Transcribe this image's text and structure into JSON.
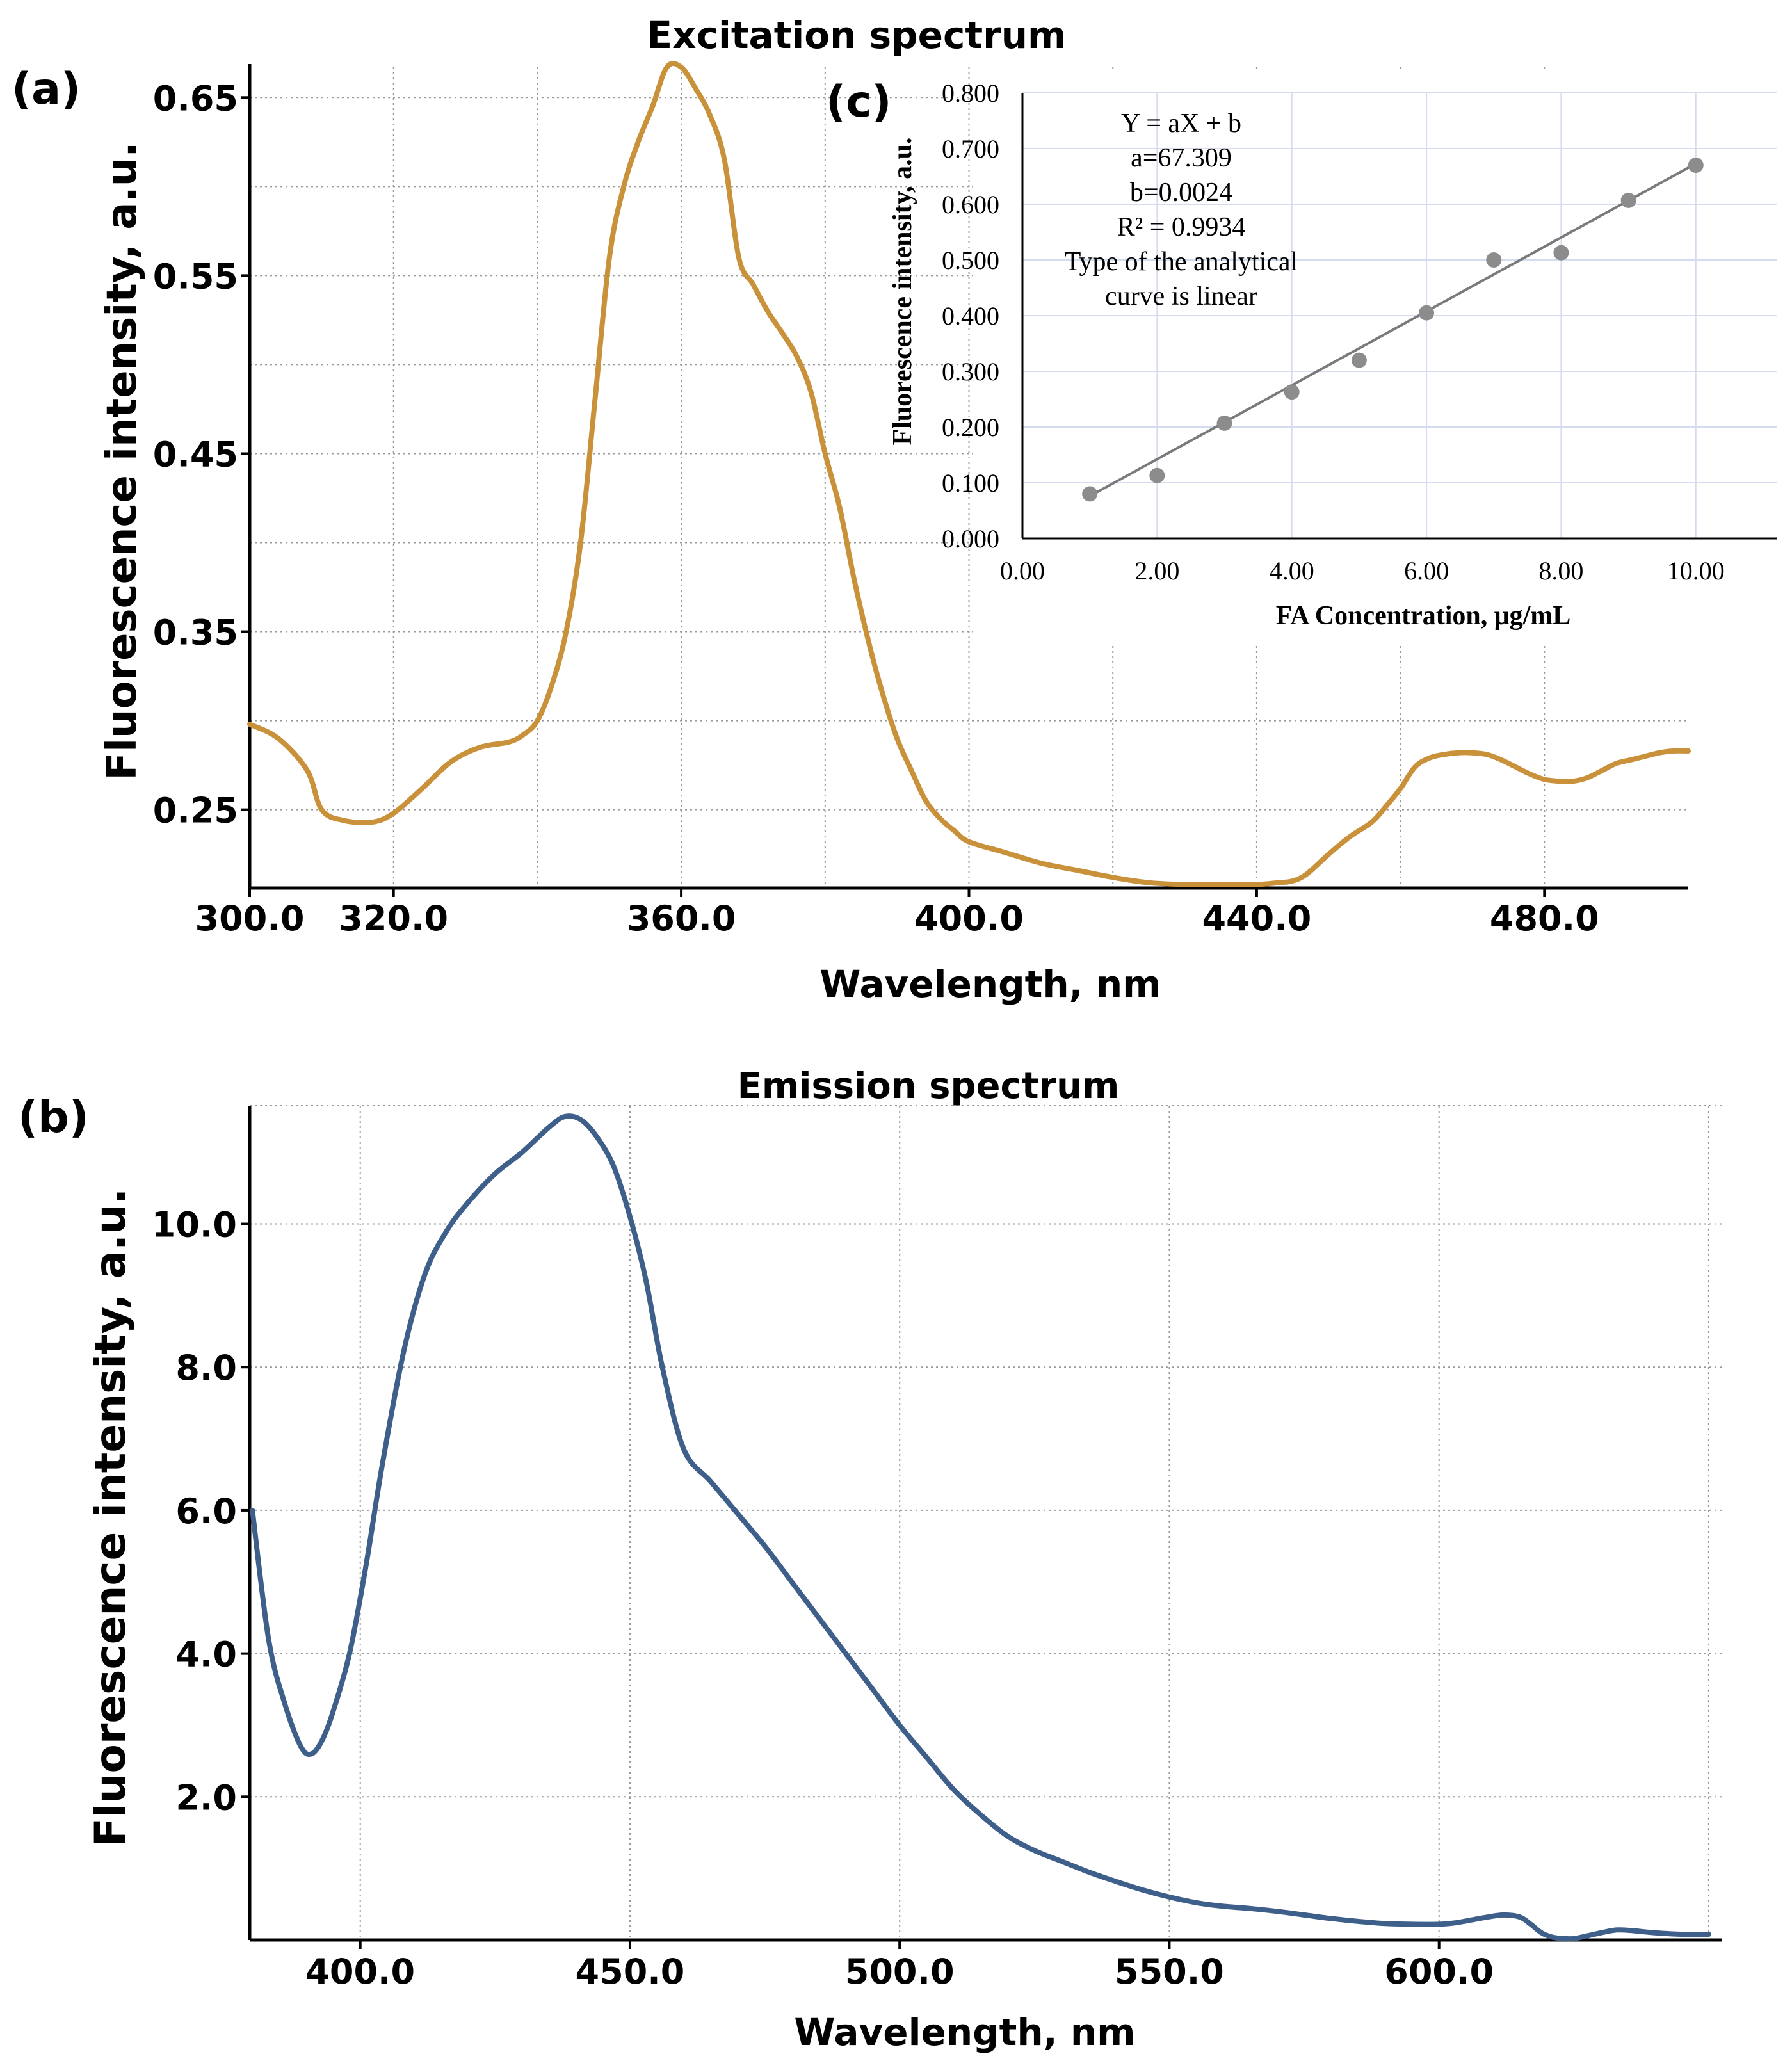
{
  "chart_data": [
    {
      "id": "a",
      "panel_label": "(a)",
      "type": "line",
      "title": "Excitation spectrum",
      "xlabel": "Wavelength, nm",
      "ylabel": "Fluorescence intensity, a.u.",
      "xlim": [
        300,
        500
      ],
      "ylim": [
        0.206,
        0.667
      ],
      "x_ticks": [
        300,
        320,
        360,
        400,
        440,
        480
      ],
      "x_tick_labels": [
        "300.0",
        "320.0",
        "360.0",
        "400.0",
        "440.0",
        "480.0"
      ],
      "y_ticks": [
        0.25,
        0.35,
        0.45,
        0.55,
        0.65
      ],
      "y_tick_labels": [
        "0.25",
        "0.35",
        "0.45",
        "0.55",
        "0.65"
      ],
      "x_grid": [
        320,
        340,
        360,
        380,
        400,
        420,
        440,
        460,
        480
      ],
      "y_grid": [
        0.25,
        0.3,
        0.35,
        0.4,
        0.45,
        0.5,
        0.55,
        0.6,
        0.65
      ],
      "grid": true,
      "color": "#C8913A",
      "series": [
        {
          "name": "Excitation",
          "x": [
            300,
            304,
            308,
            310,
            313,
            317,
            320,
            324,
            328,
            332,
            336,
            338,
            340,
            342,
            344,
            346,
            348,
            350,
            352,
            354,
            356,
            358,
            360,
            362,
            364,
            366,
            368,
            370,
            372,
            374,
            376,
            378,
            380,
            382,
            384,
            386,
            388,
            390,
            392,
            394,
            396,
            398,
            400,
            405,
            410,
            415,
            420,
            425,
            430,
            435,
            440,
            443,
            445,
            447,
            450,
            453,
            456,
            458,
            460,
            462,
            464,
            466,
            468,
            470,
            472,
            474,
            476,
            478,
            480,
            482,
            484,
            486,
            488,
            490,
            492,
            494,
            496,
            498,
            500
          ],
          "y": [
            0.298,
            0.29,
            0.272,
            0.25,
            0.244,
            0.243,
            0.248,
            0.262,
            0.277,
            0.285,
            0.288,
            0.292,
            0.3,
            0.32,
            0.35,
            0.4,
            0.48,
            0.56,
            0.6,
            0.625,
            0.645,
            0.667,
            0.667,
            0.655,
            0.64,
            0.615,
            0.56,
            0.545,
            0.53,
            0.518,
            0.505,
            0.485,
            0.45,
            0.42,
            0.38,
            0.345,
            0.315,
            0.29,
            0.272,
            0.255,
            0.245,
            0.238,
            0.232,
            0.226,
            0.22,
            0.216,
            0.212,
            0.209,
            0.208,
            0.208,
            0.208,
            0.209,
            0.21,
            0.214,
            0.225,
            0.235,
            0.243,
            0.252,
            0.262,
            0.274,
            0.279,
            0.281,
            0.282,
            0.282,
            0.281,
            0.278,
            0.274,
            0.27,
            0.267,
            0.266,
            0.266,
            0.268,
            0.272,
            0.276,
            0.278,
            0.28,
            0.282,
            0.283,
            0.283
          ]
        }
      ]
    },
    {
      "id": "b",
      "panel_label": "(b)",
      "type": "line",
      "title": "Emission spectrum",
      "xlabel": "Wavelength, nm",
      "ylabel": "Fluorescence intensity, a.u.",
      "xlim": [
        379.5,
        652.5
      ],
      "ylim": [
        0,
        11.65
      ],
      "x_ticks": [
        400,
        450,
        500,
        550,
        600
      ],
      "x_tick_labels": [
        "400.0",
        "450.0",
        "500.0",
        "550.0",
        "600.0"
      ],
      "y_ticks": [
        2,
        4,
        6,
        8,
        10
      ],
      "y_tick_labels": [
        "2.0",
        "4.0",
        "6.0",
        "8.0",
        "10.0"
      ],
      "x_grid": [
        400,
        450,
        500,
        550,
        600,
        650
      ],
      "y_grid": [
        2,
        4,
        6,
        8,
        10
      ],
      "grid": true,
      "color": "#3E5F8A",
      "series": [
        {
          "name": "Emission",
          "x": [
            380,
            383,
            386,
            389,
            391,
            393,
            395,
            398,
            401,
            404,
            408,
            412,
            416,
            420,
            425,
            430,
            435,
            438,
            441,
            444,
            447,
            450,
            453,
            456,
            460,
            465,
            470,
            475,
            480,
            485,
            490,
            495,
            500,
            505,
            510,
            515,
            520,
            525,
            530,
            535,
            540,
            545,
            550,
            555,
            560,
            565,
            570,
            575,
            580,
            585,
            590,
            595,
            600,
            603,
            606,
            609,
            612,
            615,
            617,
            619,
            621,
            623,
            625,
            627,
            630,
            633,
            636,
            640,
            645,
            650
          ],
          "y": [
            6.0,
            4.2,
            3.3,
            2.7,
            2.6,
            2.8,
            3.2,
            4.0,
            5.2,
            6.6,
            8.2,
            9.3,
            9.9,
            10.3,
            10.7,
            11.0,
            11.35,
            11.5,
            11.45,
            11.2,
            10.8,
            10.1,
            9.2,
            8.0,
            6.85,
            6.4,
            5.95,
            5.5,
            5.0,
            4.5,
            4.0,
            3.5,
            3.0,
            2.55,
            2.1,
            1.75,
            1.45,
            1.25,
            1.1,
            0.95,
            0.82,
            0.7,
            0.6,
            0.52,
            0.47,
            0.44,
            0.4,
            0.35,
            0.3,
            0.26,
            0.23,
            0.22,
            0.22,
            0.24,
            0.28,
            0.32,
            0.35,
            0.32,
            0.22,
            0.1,
            0.04,
            0.02,
            0.02,
            0.05,
            0.1,
            0.14,
            0.13,
            0.1,
            0.08,
            0.08
          ]
        }
      ]
    },
    {
      "id": "c",
      "panel_label": "(c)",
      "type": "scatter",
      "title": "",
      "xlabel": "FA Concentration, μg/mL",
      "ylabel": "Fluorescence intensity, a.u.",
      "xlim": [
        0,
        11.2
      ],
      "ylim": [
        0,
        0.8
      ],
      "x_ticks": [
        0,
        2,
        4,
        6,
        8,
        10
      ],
      "x_tick_labels": [
        "0.00",
        "2.00",
        "4.00",
        "6.00",
        "8.00",
        "10.00"
      ],
      "y_ticks": [
        0,
        0.1,
        0.2,
        0.3,
        0.4,
        0.5,
        0.6,
        0.7,
        0.8
      ],
      "y_tick_labels": [
        "0.000",
        "0.100",
        "0.200",
        "0.300",
        "0.400",
        "0.500",
        "0.600",
        "0.700",
        "0.800"
      ],
      "x_grid": [
        2,
        4,
        6,
        8,
        10
      ],
      "y_grid": [
        0.1,
        0.2,
        0.3,
        0.4,
        0.5,
        0.6,
        0.7,
        0.8
      ],
      "grid": true,
      "point_color": "#8C8C8C",
      "line_color": "#7A7A7A",
      "x": [
        1,
        2,
        3,
        4,
        5,
        6,
        7,
        8,
        9,
        10
      ],
      "y": [
        0.08,
        0.113,
        0.207,
        0.263,
        0.32,
        0.405,
        0.5,
        0.513,
        0.607,
        0.67
      ],
      "fit": {
        "x": [
          1,
          10
        ],
        "y": [
          0.076,
          0.673
        ]
      },
      "annotation": [
        "Y = aX + b",
        "a=67.309",
        "b=0.0024",
        "R² = 0.9934",
        "Type of the analytical",
        "curve is linear"
      ]
    }
  ]
}
